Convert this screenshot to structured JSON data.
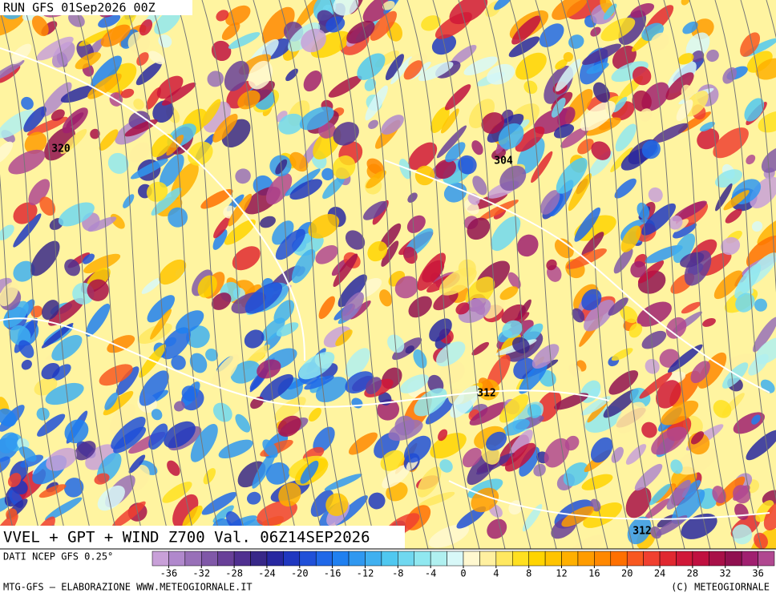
{
  "header": {
    "run": "RUN GFS 01Sep2026 00Z"
  },
  "map": {
    "title": "VVEL + GPT + WIND Z700 Val. 06Z14SEP2026",
    "contour_labels": [
      "320",
      "304",
      "312",
      "312"
    ]
  },
  "colorbar": {
    "source": "DATI NCEP GFS 0.25°",
    "lim": [
      -38,
      38
    ],
    "ticks": [
      -36,
      -32,
      -28,
      -24,
      -20,
      -16,
      -12,
      -8,
      -4,
      0,
      4,
      8,
      12,
      16,
      20,
      24,
      28,
      32,
      36
    ],
    "colors": [
      "#c8a0d8",
      "#b088cc",
      "#9870b8",
      "#8058a8",
      "#684098",
      "#503090",
      "#382888",
      "#2828a0",
      "#2038c0",
      "#2050d8",
      "#2068e8",
      "#2080f0",
      "#3098f0",
      "#40b0f0",
      "#50c8f0",
      "#70d8f0",
      "#90e8f0",
      "#b0f0f0",
      "#d8f8f8",
      "#fff8d0",
      "#fff0a0",
      "#ffe860",
      "#ffe020",
      "#ffd400",
      "#ffc400",
      "#ffb000",
      "#ff9c00",
      "#ff8800",
      "#ff7000",
      "#f85820",
      "#f04030",
      "#e02830",
      "#d01838",
      "#c01040",
      "#a81048",
      "#901050",
      "#a02070",
      "#b04890"
    ]
  },
  "footer": {
    "left": "MTG-GFS — ELABORAZIONE WWW.METEOGIORNALE.IT",
    "right": "(C) METEOGIORNALE"
  }
}
